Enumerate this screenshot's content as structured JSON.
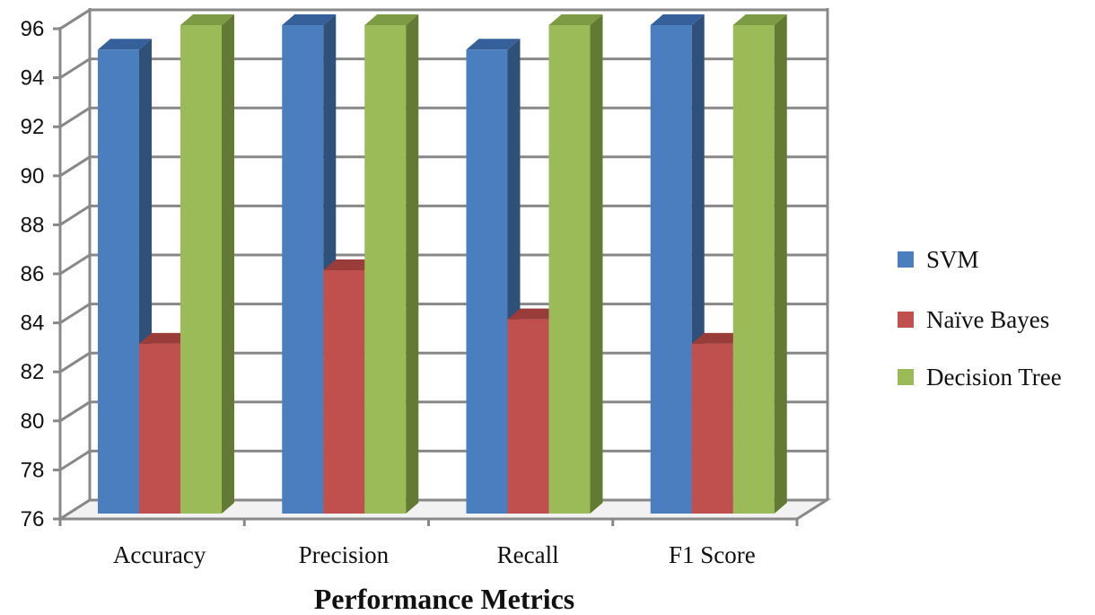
{
  "chart_data": {
    "type": "bar",
    "title": "",
    "xlabel": "Performance Metrics",
    "ylabel": "",
    "categories": [
      "Accuracy",
      "Precision",
      "Recall",
      "F1 Score"
    ],
    "series": [
      {
        "name": "SVM",
        "values": [
          95,
          96,
          95,
          96
        ],
        "color": "#4A7EBF",
        "side_color": "#2F5079",
        "top_color": "#36609A"
      },
      {
        "name": "Naïve Bayes",
        "values": [
          83,
          86,
          84,
          83
        ],
        "color": "#C0504D",
        "side_color": "#7E3331",
        "top_color": "#9A3C39"
      },
      {
        "name": "Decision Tree",
        "values": [
          96,
          96,
          96,
          96
        ],
        "color": "#9BBB59",
        "side_color": "#637A34",
        "top_color": "#7D9A45"
      }
    ],
    "ylim": [
      76,
      96
    ],
    "yticks": [
      76,
      78,
      80,
      82,
      84,
      86,
      88,
      90,
      92,
      94,
      96
    ],
    "grid": true,
    "legend_position": "right"
  }
}
